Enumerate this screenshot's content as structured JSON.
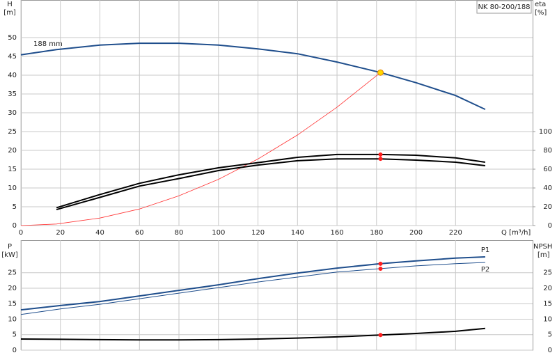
{
  "chart_data": [
    {
      "type": "line",
      "model": "NK 80-200/188",
      "curve_label": "188 mm",
      "ylabel": "H",
      "yunit": "[m]",
      "y2label": "eta",
      "y2unit": "[%]",
      "xlabel": "Q [m³/h]",
      "xlim": [
        0,
        259
      ],
      "xticks": [
        0,
        20,
        40,
        60,
        80,
        100,
        120,
        140,
        160,
        180,
        200,
        220
      ],
      "ylim": [
        0,
        60
      ],
      "yticks": [
        0,
        5,
        10,
        15,
        20,
        25,
        30,
        35,
        40,
        45,
        50
      ],
      "y2lim": [
        0,
        240
      ],
      "y2ticks": [
        0,
        20,
        40,
        60,
        80,
        100
      ],
      "grid": true,
      "x": [
        0,
        18,
        40,
        60,
        80,
        100,
        120,
        140,
        160,
        182,
        200,
        220,
        235
      ],
      "series": [
        {
          "color": "#1f4e8c",
          "width": 2,
          "values": [
            45.4,
            46.8,
            48.0,
            48.5,
            48.5,
            48.0,
            47.0,
            45.7,
            43.5,
            40.7,
            38.0,
            34.6,
            30.9
          ]
        },
        {
          "color": "#ff3333",
          "width": 0.8,
          "values": [
            0,
            0.4,
            2.0,
            4.4,
            7.9,
            12.3,
            17.7,
            24.1,
            31.5,
            40.7,
            null,
            null,
            null
          ]
        },
        {
          "color": "#000000",
          "width": 2,
          "axis": "y2",
          "values": [
            null,
            19,
            33,
            45,
            54,
            61.5,
            67,
            72.6,
            75.6,
            75.6,
            74.8,
            72,
            67.4
          ]
        },
        {
          "color": "#000000",
          "width": 2,
          "axis": "y2",
          "values": [
            null,
            17,
            30,
            42,
            50,
            58.5,
            64.4,
            69,
            71,
            71,
            69.6,
            67.4,
            63.7
          ]
        }
      ],
      "duty_points": [
        {
          "x": 182,
          "y": 40.7,
          "color": "#ffd700"
        },
        {
          "x": 182,
          "y": 75.6,
          "axis": "y2",
          "color": "#ff2020"
        },
        {
          "x": 182,
          "y": 71,
          "axis": "y2",
          "color": "#ff2020"
        }
      ]
    },
    {
      "type": "line",
      "ylabel": "P",
      "yunit": "[kW]",
      "y2label": "NPSH",
      "y2unit": "[m]",
      "xlim": [
        0,
        259
      ],
      "ylim": [
        0,
        35.5
      ],
      "yticks": [
        0,
        5,
        10,
        15,
        20,
        25
      ],
      "grid": true,
      "x": [
        0,
        20,
        40,
        60,
        80,
        100,
        120,
        140,
        160,
        182,
        200,
        220,
        235
      ],
      "series": [
        {
          "name": "P1",
          "color": "#1f4e8c",
          "width": 2,
          "values": [
            13.0,
            14.4,
            15.7,
            17.5,
            19.3,
            21.1,
            23.1,
            24.9,
            26.5,
            27.9,
            28.8,
            29.7,
            30.1
          ]
        },
        {
          "name": "P2",
          "color": "#1f4e8c",
          "width": 1,
          "values": [
            11.5,
            13.3,
            14.8,
            16.6,
            18.4,
            20.2,
            22.0,
            23.6,
            25.2,
            26.3,
            27.2,
            27.9,
            28.3
          ]
        },
        {
          "color": "#000000",
          "width": 2,
          "values": [
            3.6,
            3.5,
            3.4,
            3.3,
            3.3,
            3.4,
            3.6,
            3.9,
            4.3,
            4.9,
            5.4,
            6.1,
            7.0
          ]
        }
      ],
      "duty_points": [
        {
          "x": 182,
          "y": 27.9,
          "color": "#ff2020"
        },
        {
          "x": 182,
          "y": 26.3,
          "color": "#ff2020"
        },
        {
          "x": 182,
          "y": 4.9,
          "color": "#ff2020"
        }
      ]
    }
  ]
}
